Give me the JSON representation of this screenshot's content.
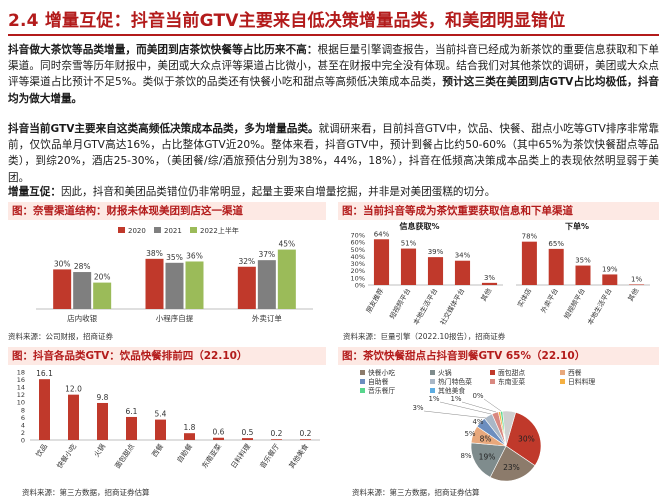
{
  "header": {
    "title": "2.4 增量互促：抖音当前GTV主要来自低决策增量品类，和美团明显错位"
  },
  "paragraphs": {
    "p1_bold": "抖音做大茶饮等品类增量，而美团到店茶饮快餐等占比历来不高：",
    "p1_rest": "根据巨量引擎调查报告，当前抖音已经成为新茶饮的重要信息获取和下单渠道。同时奈雪等历年财报中，美团或大众点评等渠道占比微小，甚至在财报中完全没有体现。结合我们对其他茶饮的调研，美团或大众点评等渠道占比预计不足5%。类似于茶饮的品类还有快餐小吃和甜点等高频低决策成本品类，",
    "p1_bold2": "预计这三类在美团到店GTV占比均极低，抖音均为做大增量。",
    "p2_bold": "抖音当前GTV主要来自这类高频低决策成本品类，多为增量品类。",
    "p2_rest": "就调研来看，目前抖音GTV中，饮品、快餐、甜点小吃等GTV排序非常靠前，仅饮品单月GTV高达16%，占比整体GTV近20%。整体来看，抖音GTV中，预计到餐占比约50-60%（其中65%为茶饮快餐甜点等品类），到综20%，酒店25-30%，（美团餐/综/酒旅预估分别为38%，44%，18%），抖音在低频高决策成本品类上的表现依然明显弱于美团。",
    "p3_bold": "增量互促：",
    "p3_rest": "因此，抖音和美团品类错位仍非常明显，起量主要来自增量挖掘，并非是对美团蛋糕的切分。"
  },
  "figures": [
    {
      "heading": "图：奈雪渠道结构：财报未体现美团到店这一渠道",
      "source": "资料来源：公司财报，招商证券"
    },
    {
      "heading": "图：当前抖音等成为茶饮重要获取信息和下单渠道",
      "source": "资料来源：巨量引擎（2022.10报告），招商证券"
    },
    {
      "heading": "图：抖音各品类GTV：饮品快餐排前四（22.10）",
      "source": "资料来源：第三方数据，招商证券估算"
    },
    {
      "heading": "图：茶饮快餐甜点占抖音到餐GTV 65%（22.10）",
      "source": "资料来源：第三方数据，招商证券估算"
    }
  ],
  "colors": {
    "accent": "#b31b1b",
    "heading_bg": "#fde9e4",
    "bar_red": "#c0392b",
    "bar_gray": "#7f7f7f",
    "green": "#9bbb59"
  },
  "chart_data": [
    {
      "type": "bar",
      "categories": [
        "店内收银",
        "小程序自提",
        "外卖订单"
      ],
      "series": [
        {
          "name": "2020",
          "values": [
            30,
            38,
            32
          ],
          "color": "#c0392b"
        },
        {
          "name": "2021",
          "values": [
            28,
            35,
            37
          ],
          "color": "#7f7f7f"
        },
        {
          "name": "2022上半年",
          "values": [
            20,
            36,
            45
          ],
          "color": "#9bbb59"
        }
      ],
      "value_labels": [
        "30%",
        "28%",
        "20%",
        "38%",
        "35%",
        "36%",
        "32%",
        "37%",
        "45%"
      ],
      "ylim": [
        0,
        50
      ],
      "legend": "top"
    },
    {
      "type": "bar",
      "subtitle": "信息获取%",
      "categories": [
        "朋友推荐",
        "短视频平台",
        "本地生活平台",
        "社交媒体平台",
        "其他"
      ],
      "values": [
        64,
        51,
        39,
        34,
        3
      ],
      "value_labels": [
        "64%",
        "51%",
        "39%",
        "34%",
        "3%"
      ],
      "yticks": [
        "0%",
        "10%",
        "20%",
        "30%",
        "40%",
        "50%",
        "60%",
        "70%"
      ],
      "ylim": [
        0,
        70
      ]
    },
    {
      "type": "bar",
      "subtitle": "下单%",
      "categories": [
        "实体店",
        "外卖平台",
        "短视频平台",
        "本地生活平台",
        "其他"
      ],
      "values": [
        78,
        65,
        35,
        19,
        1
      ],
      "value_labels": [
        "78%",
        "65%",
        "35%",
        "19%",
        "1%"
      ],
      "ylim": [
        0,
        90
      ]
    },
    {
      "type": "bar",
      "categories": [
        "饮品",
        "快餐小吃",
        "火锅",
        "面包甜点",
        "西餐",
        "自助餐",
        "东南亚菜",
        "日料料理",
        "音乐餐厅",
        "其他美食"
      ],
      "values": [
        16.1,
        12.0,
        9.8,
        6.1,
        5.4,
        1.8,
        0.6,
        0.5,
        0.2,
        0.2
      ],
      "value_labels": [
        "16.1",
        "12.0",
        "9.8",
        "6.1",
        "5.4",
        "1.8",
        "0.6",
        "0.5",
        "0.2",
        "0.2"
      ],
      "yticks": [
        "0",
        "2",
        "4",
        "6",
        "8",
        "10",
        "12",
        "14",
        "16",
        "18"
      ],
      "ylim": [
        0,
        18
      ]
    },
    {
      "type": "pie",
      "slices": [
        {
          "name": "面包甜点",
          "value": 30,
          "label": "30%",
          "color": "#c0392b"
        },
        {
          "name": "快餐小吃",
          "value": 23,
          "label": "23%",
          "color": "#8c7b6b"
        },
        {
          "name": "火锅",
          "value": 19,
          "label": "19%",
          "color": "#7f8c8d"
        },
        {
          "name": "西餐",
          "value": 8,
          "label": "8%",
          "color": "#e8a87c"
        },
        {
          "name": "自助餐",
          "value": 5,
          "label": "5%",
          "color": "#6c8ebf"
        },
        {
          "name": "热门特色菜",
          "value": 4,
          "label": "4%",
          "color": "#a9b7c6"
        },
        {
          "name": "东南亚菜",
          "value": 3,
          "label": "3%",
          "color": "#d98880"
        },
        {
          "name": "日料料理",
          "value": 1,
          "label": "1%",
          "color": "#f5b041"
        },
        {
          "name": "音乐餐厅",
          "value": 1,
          "label": "1%",
          "color": "#58d68d"
        },
        {
          "name": "其他美食",
          "value": 0,
          "label": "0%",
          "color": "#5dade2"
        },
        {
          "name": "其它",
          "value": 6,
          "label": "",
          "color": "#cfcfcf"
        }
      ],
      "legend_names": [
        "快餐小吃",
        "火锅",
        "面包甜点",
        "西餐",
        "自助餐",
        "热门特色菜",
        "东南亚菜",
        "日料料理",
        "音乐餐厅",
        "其他美食"
      ],
      "legend_colors": [
        "#8c7b6b",
        "#7f8c8d",
        "#c0392b",
        "#e8a87c",
        "#6c8ebf",
        "#a9b7c6",
        "#d98880",
        "#f5b041",
        "#58d68d",
        "#5dade2"
      ],
      "outside_labels": [
        "3%",
        "1%",
        "1%",
        "0%"
      ]
    }
  ]
}
